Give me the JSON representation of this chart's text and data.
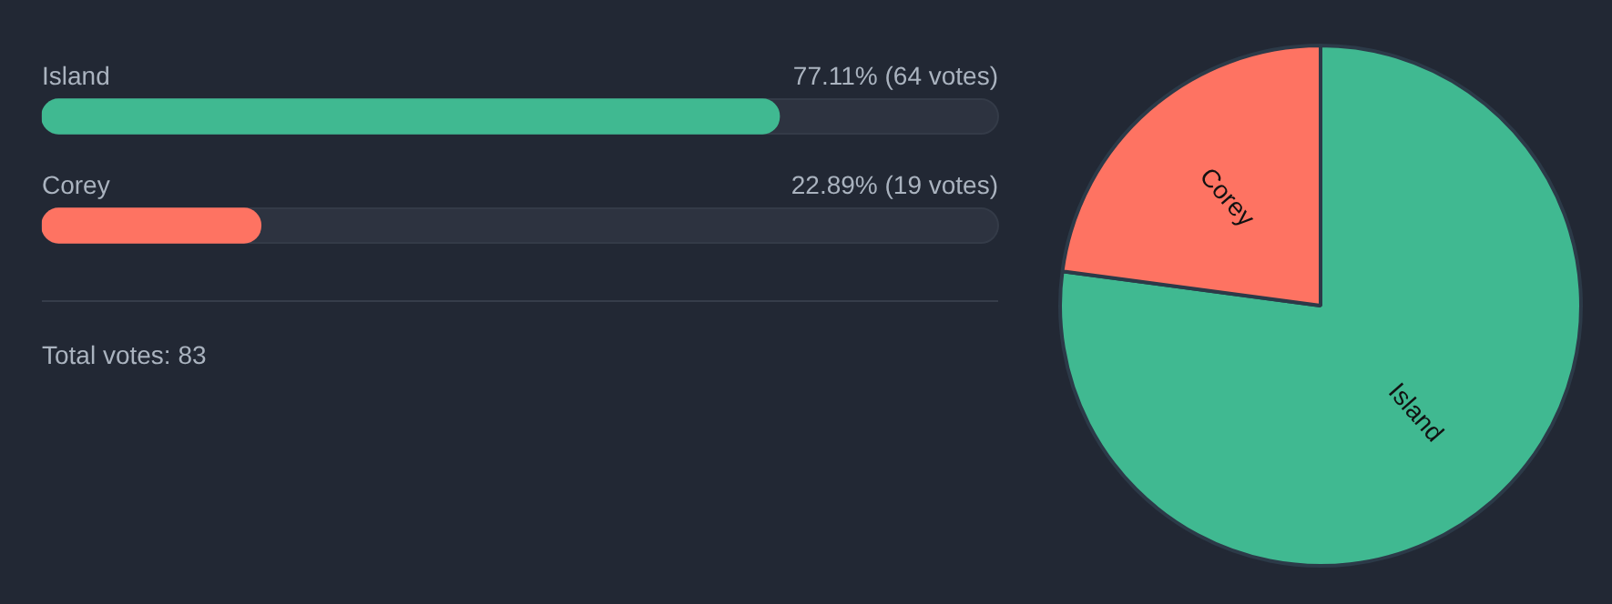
{
  "chart_data": [
    {
      "type": "bar",
      "orientation": "horizontal",
      "categories": [
        "Island",
        "Corey"
      ],
      "values": [
        77.11,
        22.89
      ],
      "colors": [
        "#40b991",
        "#fe7362"
      ],
      "xlim": [
        0,
        100
      ],
      "tick_labels": false,
      "value_labels": [
        "77.11% (64 votes)",
        "22.89% (19 votes)"
      ],
      "annotations": [
        "Total votes: 83"
      ]
    },
    {
      "type": "pie",
      "categories": [
        "Island",
        "Corey"
      ],
      "values": [
        77.11,
        22.89
      ],
      "colors": [
        "#40b991",
        "#fe7362"
      ]
    }
  ]
}
